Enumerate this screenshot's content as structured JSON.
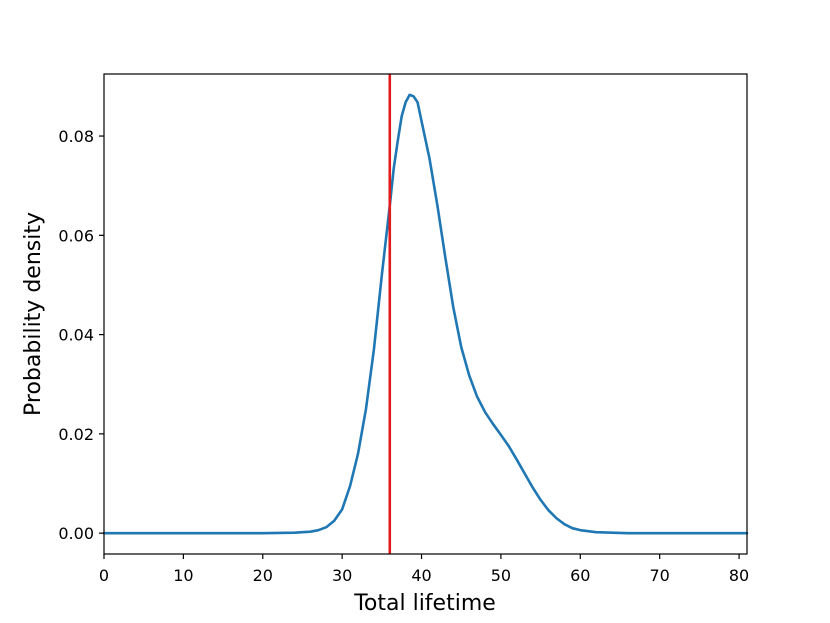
{
  "chart_data": {
    "type": "line",
    "title": "",
    "xlabel": "Total lifetime",
    "ylabel": "Probability density",
    "xlim": [
      0,
      81
    ],
    "ylim": [
      -0.0042,
      0.0925
    ],
    "xticks": [
      0,
      10,
      20,
      30,
      40,
      50,
      60,
      70,
      80
    ],
    "xtick_labels": [
      "0",
      "10",
      "20",
      "30",
      "40",
      "50",
      "60",
      "70",
      "80"
    ],
    "yticks": [
      0.0,
      0.02,
      0.04,
      0.06,
      0.08
    ],
    "ytick_labels": [
      "0.00",
      "0.02",
      "0.04",
      "0.06",
      "0.08"
    ],
    "grid": false,
    "legend": "none",
    "series": [
      {
        "color": "#1f77b4",
        "x": [
          0,
          5,
          10,
          15,
          20,
          24,
          26,
          27,
          28,
          29,
          30,
          31,
          32,
          33,
          34,
          35,
          36,
          36.5,
          37,
          37.5,
          38,
          38.5,
          39,
          39.5,
          40,
          41,
          42,
          43,
          44,
          45,
          46,
          47,
          48,
          49,
          50,
          51,
          52,
          53,
          54,
          55,
          56,
          57,
          58,
          59,
          60,
          62,
          64,
          66,
          70,
          75,
          81
        ],
        "y": [
          0,
          0,
          0,
          0,
          0,
          0.0001,
          0.0003,
          0.0006,
          0.0012,
          0.0025,
          0.0048,
          0.0095,
          0.016,
          0.025,
          0.037,
          0.052,
          0.066,
          0.0735,
          0.079,
          0.084,
          0.0868,
          0.0883,
          0.088,
          0.0868,
          0.083,
          0.0755,
          0.066,
          0.0555,
          0.0455,
          0.0375,
          0.0318,
          0.0275,
          0.0244,
          0.022,
          0.0198,
          0.0175,
          0.0148,
          0.012,
          0.0092,
          0.0067,
          0.0046,
          0.003,
          0.0018,
          0.001,
          0.0006,
          0.0002,
          0.0001,
          0,
          0,
          0,
          0
        ]
      }
    ],
    "vline": {
      "x": 36,
      "color": "#e31a1c"
    }
  }
}
